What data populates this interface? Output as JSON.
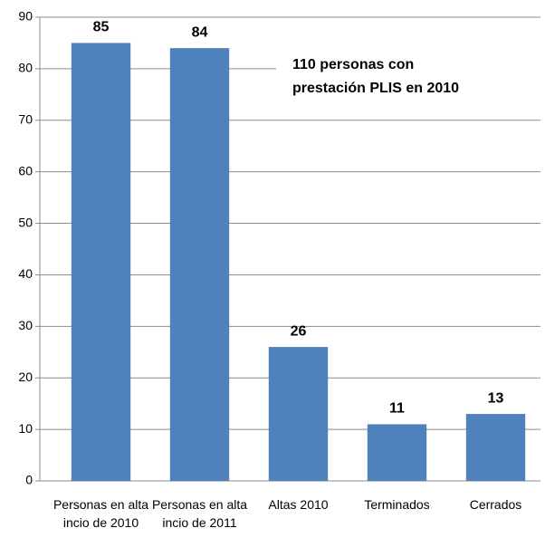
{
  "chart_data": {
    "type": "bar",
    "categories": [
      "Personas en alta incio de 2010",
      "Personas en alta incio de 2011",
      "Altas 2010",
      "Terminados",
      "Cerrados"
    ],
    "values": [
      85,
      84,
      26,
      11,
      13
    ],
    "color": "#4f81bd",
    "ylim": [
      0,
      90
    ],
    "yticks": [
      0,
      10,
      20,
      30,
      40,
      50,
      60,
      70,
      80,
      90
    ],
    "grid": true,
    "annotation": [
      "110 personas con",
      "prestación PLIS en 2010"
    ]
  }
}
